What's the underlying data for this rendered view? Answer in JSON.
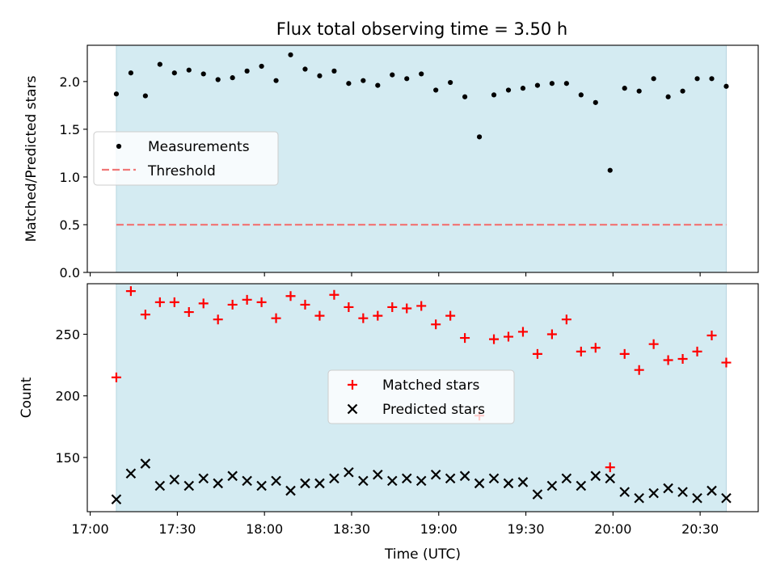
{
  "colors": {
    "shade": "#d4ebf2",
    "measurement": "#000000",
    "threshold": "#f07878",
    "matched": "#ff0000",
    "predicted": "#000000"
  },
  "chart_data": [
    {
      "type": "scatter",
      "title": "Flux total observing time = 3.50 h",
      "xlabel": "",
      "ylabel": "Matched/Predicted stars",
      "xlim": [
        "16:59",
        "20:50"
      ],
      "ylim": [
        0,
        2.38
      ],
      "x_ticks": [
        "17:00",
        "17:30",
        "18:00",
        "18:30",
        "19:00",
        "19:30",
        "20:00",
        "20:30"
      ],
      "y_ticks": [
        "0.0",
        "0.5",
        "1.0",
        "1.5",
        "2.0"
      ],
      "shaded_span": [
        "17:09",
        "20:39"
      ],
      "threshold": 0.5,
      "legend": {
        "placement": "center-left",
        "entries": [
          "Measurements",
          "Threshold"
        ]
      },
      "x": [
        "17:09",
        "17:14",
        "17:19",
        "17:24",
        "17:29",
        "17:34",
        "17:39",
        "17:44",
        "17:49",
        "17:54",
        "17:59",
        "18:04",
        "18:09",
        "18:14",
        "18:19",
        "18:24",
        "18:29",
        "18:34",
        "18:39",
        "18:44",
        "18:49",
        "18:54",
        "18:59",
        "19:04",
        "19:09",
        "19:14",
        "19:19",
        "19:24",
        "19:29",
        "19:34",
        "19:39",
        "19:44",
        "19:49",
        "19:54",
        "19:59",
        "20:04",
        "20:09",
        "20:14",
        "20:19",
        "20:24",
        "20:29",
        "20:34",
        "20:39"
      ],
      "series": [
        {
          "name": "Measurements",
          "values": [
            1.87,
            2.09,
            1.85,
            2.18,
            2.09,
            2.12,
            2.08,
            2.02,
            2.04,
            2.11,
            2.16,
            2.01,
            2.28,
            2.13,
            2.06,
            2.11,
            1.98,
            2.01,
            1.96,
            2.07,
            2.03,
            2.08,
            1.91,
            1.99,
            1.84,
            1.42,
            1.86,
            1.91,
            1.93,
            1.96,
            1.98,
            1.98,
            1.86,
            1.78,
            1.07,
            1.93,
            1.9,
            2.03,
            1.84,
            1.9,
            2.03,
            2.03,
            1.95
          ]
        }
      ]
    },
    {
      "type": "scatter",
      "title": "",
      "xlabel": "Time (UTC)",
      "ylabel": "Count",
      "xlim": [
        "16:59",
        "20:50"
      ],
      "ylim": [
        106,
        291
      ],
      "x_ticks": [
        "17:00",
        "17:30",
        "18:00",
        "18:30",
        "19:00",
        "19:30",
        "20:00",
        "20:30"
      ],
      "y_ticks": [
        "150",
        "200",
        "250"
      ],
      "shaded_span": [
        "17:09",
        "20:39"
      ],
      "legend": {
        "placement": "center",
        "entries": [
          "Matched stars",
          "Predicted stars"
        ]
      },
      "x": [
        "17:09",
        "17:14",
        "17:19",
        "17:24",
        "17:29",
        "17:34",
        "17:39",
        "17:44",
        "17:49",
        "17:54",
        "17:59",
        "18:04",
        "18:09",
        "18:14",
        "18:19",
        "18:24",
        "18:29",
        "18:34",
        "18:39",
        "18:44",
        "18:49",
        "18:54",
        "18:59",
        "19:04",
        "19:09",
        "19:14",
        "19:19",
        "19:24",
        "19:29",
        "19:34",
        "19:39",
        "19:44",
        "19:49",
        "19:54",
        "19:59",
        "20:04",
        "20:09",
        "20:14",
        "20:19",
        "20:24",
        "20:29",
        "20:34",
        "20:39"
      ],
      "series": [
        {
          "name": "Matched stars",
          "values": [
            215,
            285,
            266,
            276,
            276,
            268,
            275,
            262,
            274,
            278,
            276,
            263,
            281,
            274,
            265,
            282,
            272,
            263,
            265,
            272,
            271,
            273,
            258,
            265,
            247,
            184,
            246,
            248,
            252,
            234,
            250,
            262,
            236,
            239,
            142,
            234,
            221,
            242,
            229,
            230,
            236,
            249,
            227
          ]
        },
        {
          "name": "Predicted stars",
          "values": [
            116,
            137,
            145,
            127,
            132,
            127,
            133,
            129,
            135,
            131,
            127,
            131,
            123,
            129,
            129,
            133,
            138,
            131,
            136,
            131,
            133,
            131,
            136,
            133,
            135,
            129,
            133,
            129,
            130,
            120,
            127,
            133,
            127,
            135,
            133,
            122,
            117,
            121,
            125,
            122,
            117,
            123,
            117
          ]
        }
      ]
    }
  ]
}
